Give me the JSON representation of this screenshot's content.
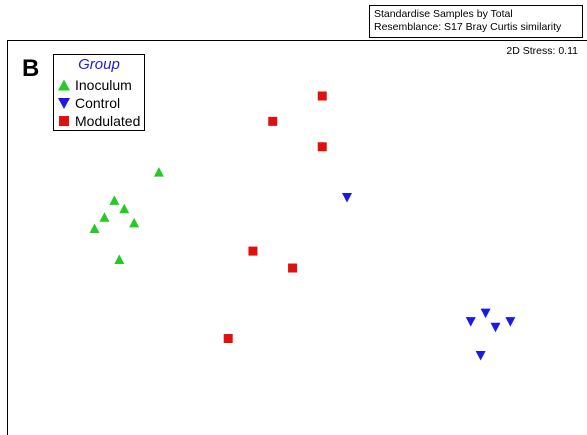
{
  "info_box": {
    "line1": "Standardise Samples by Total",
    "line2": "Resemblance: S17 Bray Curtis similarity"
  },
  "panel_letter": "B",
  "stress_label": "2D Stress: 0.11",
  "legend": {
    "title": "Group",
    "items": [
      {
        "label": "Inoculum",
        "marker": "triangle-up",
        "color": "#22cc22"
      },
      {
        "label": "Control",
        "marker": "triangle-down",
        "color": "#1a1ae6"
      },
      {
        "label": "Modulated",
        "marker": "square",
        "color": "#e01010"
      }
    ]
  },
  "chart_data": {
    "type": "scatter",
    "title": "",
    "xlabel": "",
    "ylabel": "",
    "grid": false,
    "legend_position": "top-left",
    "series": [
      {
        "name": "Inoculum",
        "marker": "triangle-up",
        "color": "#22cc22",
        "points": [
          {
            "x": 0.22,
            "y": 0.73
          },
          {
            "x": 0.13,
            "y": 0.63
          },
          {
            "x": 0.15,
            "y": 0.6
          },
          {
            "x": 0.11,
            "y": 0.57
          },
          {
            "x": 0.17,
            "y": 0.55
          },
          {
            "x": 0.09,
            "y": 0.53
          },
          {
            "x": 0.14,
            "y": 0.42
          }
        ]
      },
      {
        "name": "Control",
        "marker": "triangle-down",
        "color": "#1a1ae6",
        "points": [
          {
            "x": 0.6,
            "y": 0.64
          },
          {
            "x": 0.88,
            "y": 0.23
          },
          {
            "x": 0.85,
            "y": 0.2
          },
          {
            "x": 0.93,
            "y": 0.2
          },
          {
            "x": 0.9,
            "y": 0.18
          },
          {
            "x": 0.87,
            "y": 0.08
          }
        ]
      },
      {
        "name": "Modulated",
        "marker": "square",
        "color": "#e01010",
        "points": [
          {
            "x": 0.55,
            "y": 1.0
          },
          {
            "x": 0.45,
            "y": 0.91
          },
          {
            "x": 0.55,
            "y": 0.82
          },
          {
            "x": 0.41,
            "y": 0.45
          },
          {
            "x": 0.49,
            "y": 0.39
          },
          {
            "x": 0.36,
            "y": 0.14
          }
        ]
      }
    ]
  }
}
